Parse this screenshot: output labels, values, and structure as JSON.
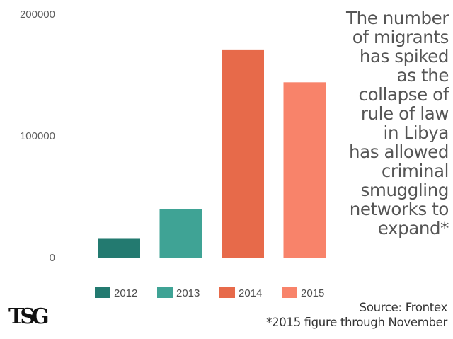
{
  "chart_data": {
    "type": "bar",
    "categories": [
      "2012",
      "2013",
      "2014",
      "2015"
    ],
    "values": [
      16000,
      40000,
      171000,
      144000
    ],
    "colors": [
      "#237a70",
      "#3fa395",
      "#e76a4a",
      "#f8836a"
    ],
    "y_ticks": [
      "0",
      "100000",
      "200000"
    ],
    "ylim": [
      0,
      200000
    ],
    "legend": [
      "2012",
      "2013",
      "2014",
      "2015"
    ],
    "legend_position": "bottom",
    "grid": false
  },
  "annotation_lines": [
    "The number",
    "of migrants",
    "has spiked",
    "as the",
    "collapse of",
    "rule of law",
    "in Libya",
    "has allowed",
    "criminal",
    "smuggling",
    "networks to",
    "expand*"
  ],
  "source": {
    "line1": "Source: Frontex",
    "line2": "*2015 figure through November"
  },
  "logo_text": "TSG"
}
